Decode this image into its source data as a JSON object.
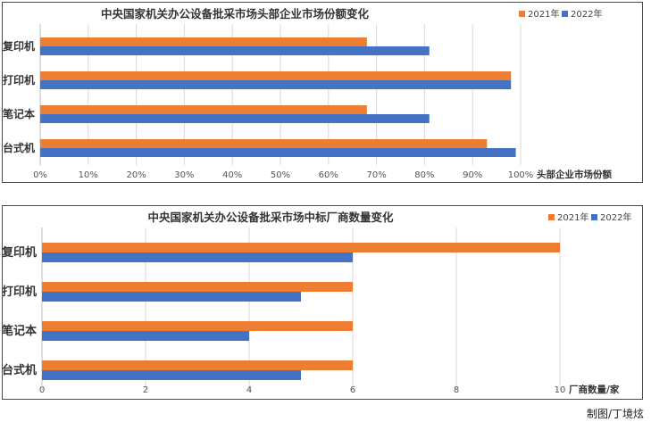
{
  "chart_data": [
    {
      "type": "bar",
      "title": "中央国家机关办公设备批采市场头部企业市场份额变化",
      "categories": [
        "复印机",
        "打印机",
        "笔记本",
        "台式机"
      ],
      "series": [
        {
          "name": "2021年",
          "values": [
            68,
            98,
            68,
            93
          ],
          "color": "#ed7d31"
        },
        {
          "name": "2022年",
          "values": [
            81,
            98,
            81,
            99
          ],
          "color": "#4472c4"
        }
      ],
      "xlabel": "头部企业市场份额",
      "xlim": [
        0,
        100
      ],
      "xticks": [
        "0%",
        "10%",
        "20%",
        "30%",
        "40%",
        "50%",
        "60%",
        "70%",
        "80%",
        "90%",
        "100%"
      ],
      "grid": true,
      "legend": "top-right"
    },
    {
      "type": "bar",
      "title": "中央国家机关办公设备批采市场中标厂商数量变化",
      "categories": [
        "复印机",
        "打印机",
        "笔记本",
        "台式机"
      ],
      "series": [
        {
          "name": "2021年",
          "values": [
            10,
            6,
            6,
            6
          ],
          "color": "#ed7d31"
        },
        {
          "name": "2022年",
          "values": [
            6,
            5,
            4,
            5
          ],
          "color": "#4472c4"
        }
      ],
      "xlabel": "厂商数量/家",
      "xlim": [
        0,
        10
      ],
      "xticks": [
        "0",
        "2",
        "4",
        "6",
        "8",
        "10"
      ],
      "grid": true,
      "legend": "top-right"
    }
  ],
  "credit": "制图/丁境炫"
}
